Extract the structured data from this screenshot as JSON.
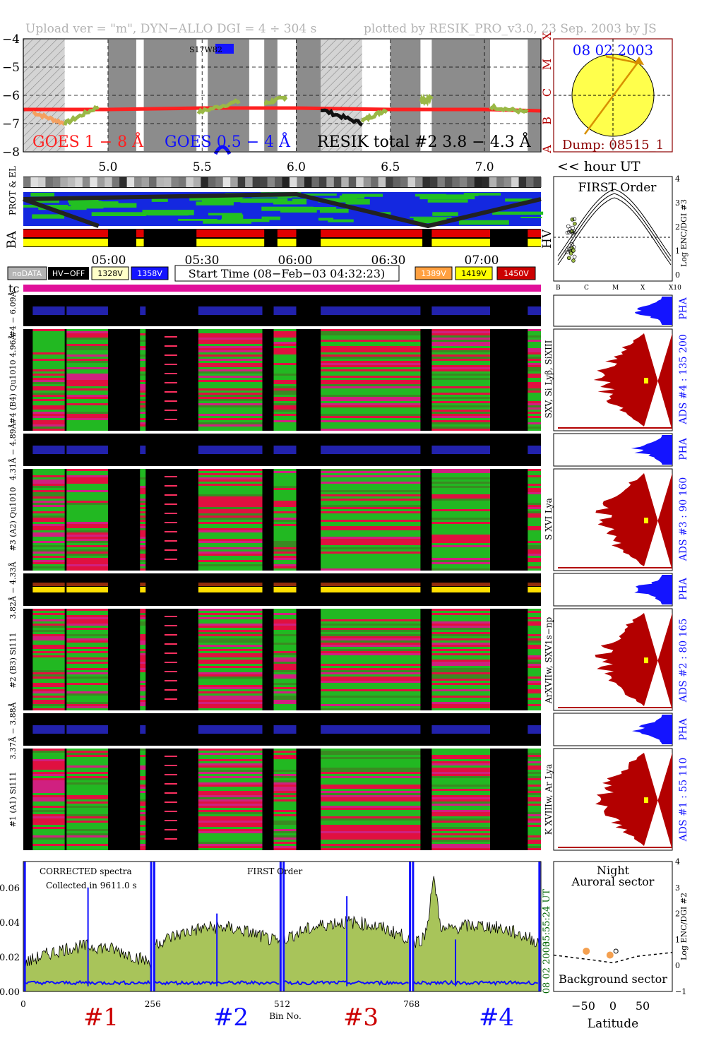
{
  "header": {
    "upload": "Upload ver = \"m\", DYN−ALLO DGI =   4 ÷ 304 s",
    "plotted": "plotted by RESIK_PRO_v3.0, 23 Sep. 2003 by JS"
  },
  "goes": {
    "y_ticks": [
      "−4",
      "−5",
      "−6",
      "−7",
      "−8"
    ],
    "class_letters": [
      "X",
      "M",
      "C",
      "B",
      "A"
    ],
    "label_1_8": "GOES 1 − 8 Å",
    "label_05_4": "GOES 0.5 − 4 Å",
    "label_resik": "RESIK total #2  3.8 − 4.3 Å",
    "marker": "S17W82",
    "x_ticks": [
      "5.0",
      "5.5",
      "6.0",
      "6.5",
      "7.0"
    ],
    "hour_label": "<< hour UT",
    "colors": {
      "goes18": "#ff2020",
      "goes054": "#1010ff",
      "resik": "#9ab846",
      "grey": "#8c8c8c"
    }
  },
  "sun": {
    "date": "08 02 2003",
    "dump": "Dump: 08515_1"
  },
  "rows": {
    "prot_el": "PROT & EL",
    "ba": "BA",
    "hv": "HV"
  },
  "first_order": {
    "title": "FIRST Order",
    "y_label": "Log ENC/DGI #3",
    "y_ticks": [
      "4",
      "3",
      "2",
      "1",
      "0"
    ],
    "x_ticks": [
      "B",
      "C",
      "M",
      "X",
      "X10"
    ]
  },
  "time_axis": [
    "05:00",
    "05:30",
    "06:00",
    "06:30",
    "07:00"
  ],
  "legend": {
    "nodata": "noDATA",
    "hvoff": "HV−OFF",
    "v1328": "1328V",
    "v1358": "1358V",
    "start_time": "Start Time (08−Feb−03 04:32:23)",
    "v1389": "1389V",
    "v1419": "1419V",
    "v1450": "1450V",
    "tc": "tc"
  },
  "channels": {
    "pha": "PHA",
    "ch4_pha": "#4 − 6.09Å",
    "ch4_main": "#4 (B4) Qu1010 4.96Å",
    "ch4_lines": "SXV, Si Lyβ, SiXIII",
    "ch4_ads": "ADS #4 :   135 200",
    "ch3_pha": "4.31Å − 4.89Å",
    "ch3_main": "#3 (A2) Qu1010",
    "ch3_lines": "S XVI Lya",
    "ch3_ads": "ADS #3 :    90 160",
    "ch2_pha": "3.82Å − 4.33Å",
    "ch2_main": "#2 (B3) Si111",
    "ch2_lines": "ArXVIIw, SXV1s−np",
    "ch2_ads": "ADS #2 :    80 165",
    "ch1_pha": "3.37Å − 3.88Å",
    "ch1_main": "#1 (A1) Si111",
    "ch1_lines": "K XVIIIw, Ar Lya",
    "ch1_ads": "ADS #1 :    55 110"
  },
  "spectrum": {
    "title": "CORRECTED spectra",
    "collected": "Collected in  9611.0 s",
    "first_order": "FIRST Order",
    "time": "05:55:24 UT",
    "date": "08 02 2003",
    "y_ticks": [
      "0.06",
      "0.04",
      "0.02",
      "0.00"
    ],
    "x_ticks": [
      "0",
      "256",
      "512",
      "768"
    ],
    "x_label": "Bin No.",
    "sections": [
      "#1",
      "#2",
      "#3",
      "#4"
    ]
  },
  "latitude": {
    "night": "Night",
    "auroral": "Auroral sector",
    "background": "Background sector",
    "x_label": "Latitude",
    "x_ticks": [
      "−50",
      "0",
      "50"
    ],
    "y_ticks": [
      "4",
      "3",
      "2",
      "1",
      "0",
      "−1"
    ],
    "y_label": "Log ENC/DGI #2"
  },
  "chart_data": {
    "type": "line",
    "title": "",
    "x_axis": "hour UT",
    "xlim": [
      4.55,
      7.3
    ],
    "ylim": [
      -8,
      -4
    ],
    "series": [
      {
        "name": "GOES 1 − 8 Å",
        "x": [
          4.55,
          5.0,
          5.5,
          6.0,
          6.5,
          7.0,
          7.3
        ],
        "values": [
          -6.5,
          -6.5,
          -6.45,
          -6.45,
          -6.5,
          -6.5,
          -6.55
        ]
      },
      {
        "name": "RESIK total #2  3.8 − 4.3 Å",
        "x": [
          4.6,
          4.7,
          4.85,
          4.95,
          5.5,
          5.7,
          5.85,
          5.95,
          6.35,
          6.45,
          6.7,
          6.95,
          7.2
        ],
        "values": [
          -6.6,
          -7.0,
          -6.9,
          -6.4,
          -6.6,
          -6.2,
          -6.3,
          -6.05,
          -6.9,
          -6.5,
          -6.2,
          -6.6,
          -6.6
        ]
      }
    ],
    "spectrum": {
      "x_label": "Bin No.",
      "xlim": [
        0,
        1024
      ],
      "ylim": [
        0,
        0.075
      ],
      "sections": [
        "#1",
        "#2",
        "#3",
        "#4"
      ]
    }
  }
}
